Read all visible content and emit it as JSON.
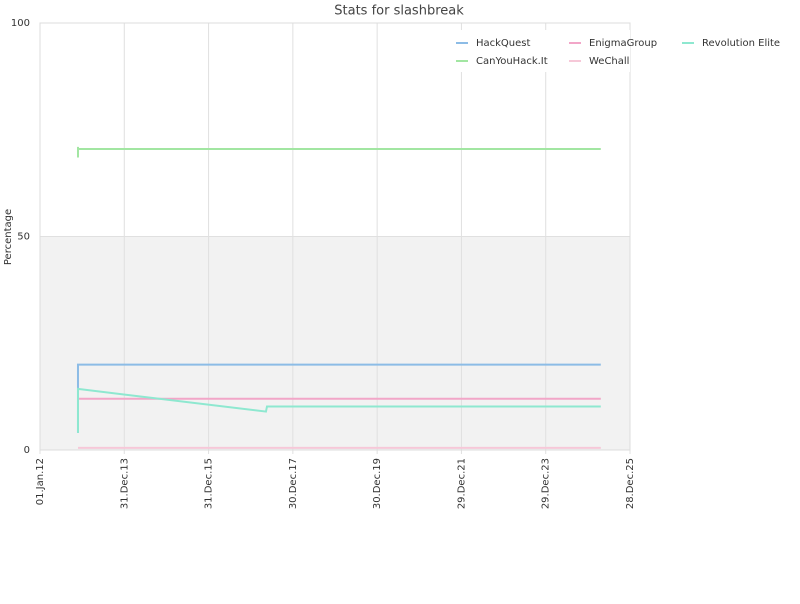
{
  "chart_data": {
    "type": "line",
    "title": "Stats for slashbreak",
    "y_label": "Percentage",
    "ylim": [
      0,
      100
    ],
    "yticks": [
      0,
      50,
      100
    ],
    "xlim": [
      "2012-01-01",
      "2025-12-28"
    ],
    "xticks": [
      {
        "value": "2012-01-01",
        "label": "01.Jan.12"
      },
      {
        "value": "2013-12-31",
        "label": "31.Dec.13"
      },
      {
        "value": "2015-12-31",
        "label": "31.Dec.15"
      },
      {
        "value": "2017-12-30",
        "label": "30.Dec.17"
      },
      {
        "value": "2019-12-30",
        "label": "30.Dec.19"
      },
      {
        "value": "2021-12-29",
        "label": "29.Dec.21"
      },
      {
        "value": "2023-12-29",
        "label": "29.Dec.23"
      },
      {
        "value": "2025-12-28",
        "label": "28.Dec.25"
      }
    ],
    "grid": true,
    "legend": "top-right",
    "series": [
      {
        "name": "HackQuest",
        "color": "#8cbce6",
        "x": [
          "2012-11-25",
          "2012-11-25",
          "2025-04-19"
        ],
        "values": [
          4,
          20,
          20
        ]
      },
      {
        "name": "EnigmaGroup",
        "color": "#f2a6c8",
        "x": [
          "2012-11-25",
          "2025-04-19"
        ],
        "values": [
          12,
          12
        ]
      },
      {
        "name": "Revolution Elite",
        "color": "#8ee8d0",
        "x": [
          "2012-11-25",
          "2012-11-25",
          "2017-05-11",
          "2017-05-20",
          "2025-04-19"
        ],
        "values": [
          4,
          14.3,
          9,
          10.2,
          10.2
        ]
      },
      {
        "name": "CanYouHack.It",
        "color": "#a2e6a2",
        "x": [
          "2012-11-25",
          "2012-11-25",
          "2012-11-25",
          "2025-04-19"
        ],
        "values": [
          68.5,
          71,
          70.5,
          70.5
        ]
      },
      {
        "name": "WeChall",
        "color": "#f6c8d8",
        "x": [
          "2012-11-25",
          "2025-04-19"
        ],
        "values": [
          0.5,
          0.5
        ]
      }
    ]
  }
}
